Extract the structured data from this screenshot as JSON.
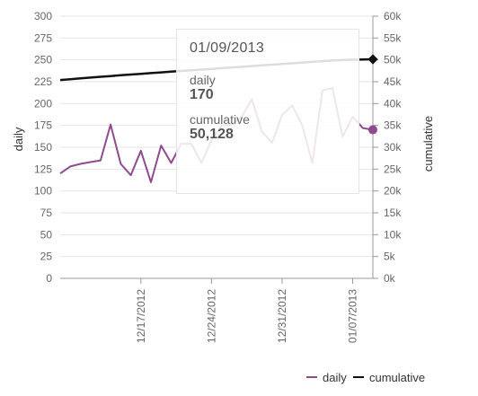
{
  "chart_data": {
    "type": "line",
    "x": [
      "2012-12-09",
      "2012-12-10",
      "2012-12-11",
      "2012-12-12",
      "2012-12-13",
      "2012-12-14",
      "2012-12-15",
      "2012-12-16",
      "2012-12-17",
      "2012-12-18",
      "2012-12-19",
      "2012-12-20",
      "2012-12-21",
      "2012-12-22",
      "2012-12-23",
      "2012-12-24",
      "2012-12-25",
      "2012-12-26",
      "2012-12-27",
      "2012-12-28",
      "2012-12-29",
      "2012-12-30",
      "2012-12-31",
      "2013-01-01",
      "2013-01-02",
      "2013-01-03",
      "2013-01-04",
      "2013-01-05",
      "2013-01-06",
      "2013-01-07",
      "2013-01-08",
      "2013-01-09"
    ],
    "series": [
      {
        "name": "daily",
        "axis": "left",
        "color": "#8e4b8e",
        "values": [
          120,
          128,
          131,
          133,
          135,
          176,
          131,
          118,
          146,
          110,
          152,
          132,
          154,
          154,
          132,
          158,
          175,
          176,
          185,
          205,
          168,
          155,
          187,
          198,
          175,
          132,
          215,
          218,
          162,
          185,
          172,
          170
        ]
      },
      {
        "name": "cumulative",
        "axis": "right",
        "color": "#111111",
        "values": [
          45400,
          45580,
          45760,
          45940,
          46120,
          46300,
          46470,
          46640,
          46810,
          46980,
          47140,
          47300,
          47460,
          47620,
          47780,
          47940,
          48100,
          48260,
          48420,
          48580,
          48740,
          48900,
          49060,
          49220,
          49380,
          49540,
          49700,
          49850,
          49950,
          50040,
          50090,
          50128
        ]
      }
    ],
    "ylabel": "daily",
    "y2label": "cumulative",
    "ylim": [
      0,
      300
    ],
    "y2lim": [
      0,
      60000
    ],
    "yticks": [
      "0",
      "25",
      "50",
      "75",
      "100",
      "125",
      "150",
      "175",
      "200",
      "225",
      "250",
      "275",
      "300"
    ],
    "y2ticks": [
      "0k",
      "5k",
      "10k",
      "15k",
      "20k",
      "25k",
      "30k",
      "35k",
      "40k",
      "45k",
      "50k",
      "55k",
      "60k"
    ],
    "xticks": [
      {
        "date": "2012-12-17",
        "label": "12/17/2012"
      },
      {
        "date": "2012-12-24",
        "label": "12/24/2012"
      },
      {
        "date": "2012-12-31",
        "label": "12/31/2012"
      },
      {
        "date": "2013-01-07",
        "label": "01/07/2013"
      }
    ],
    "grid": true,
    "legend": "bottom-right"
  },
  "tooltip": {
    "date": "01/09/2013",
    "daily_label": "daily",
    "daily_value": "170",
    "cumulative_label": "cumulative",
    "cumulative_value": "50,128"
  },
  "legend": {
    "daily": "daily",
    "cumulative": "cumulative"
  }
}
